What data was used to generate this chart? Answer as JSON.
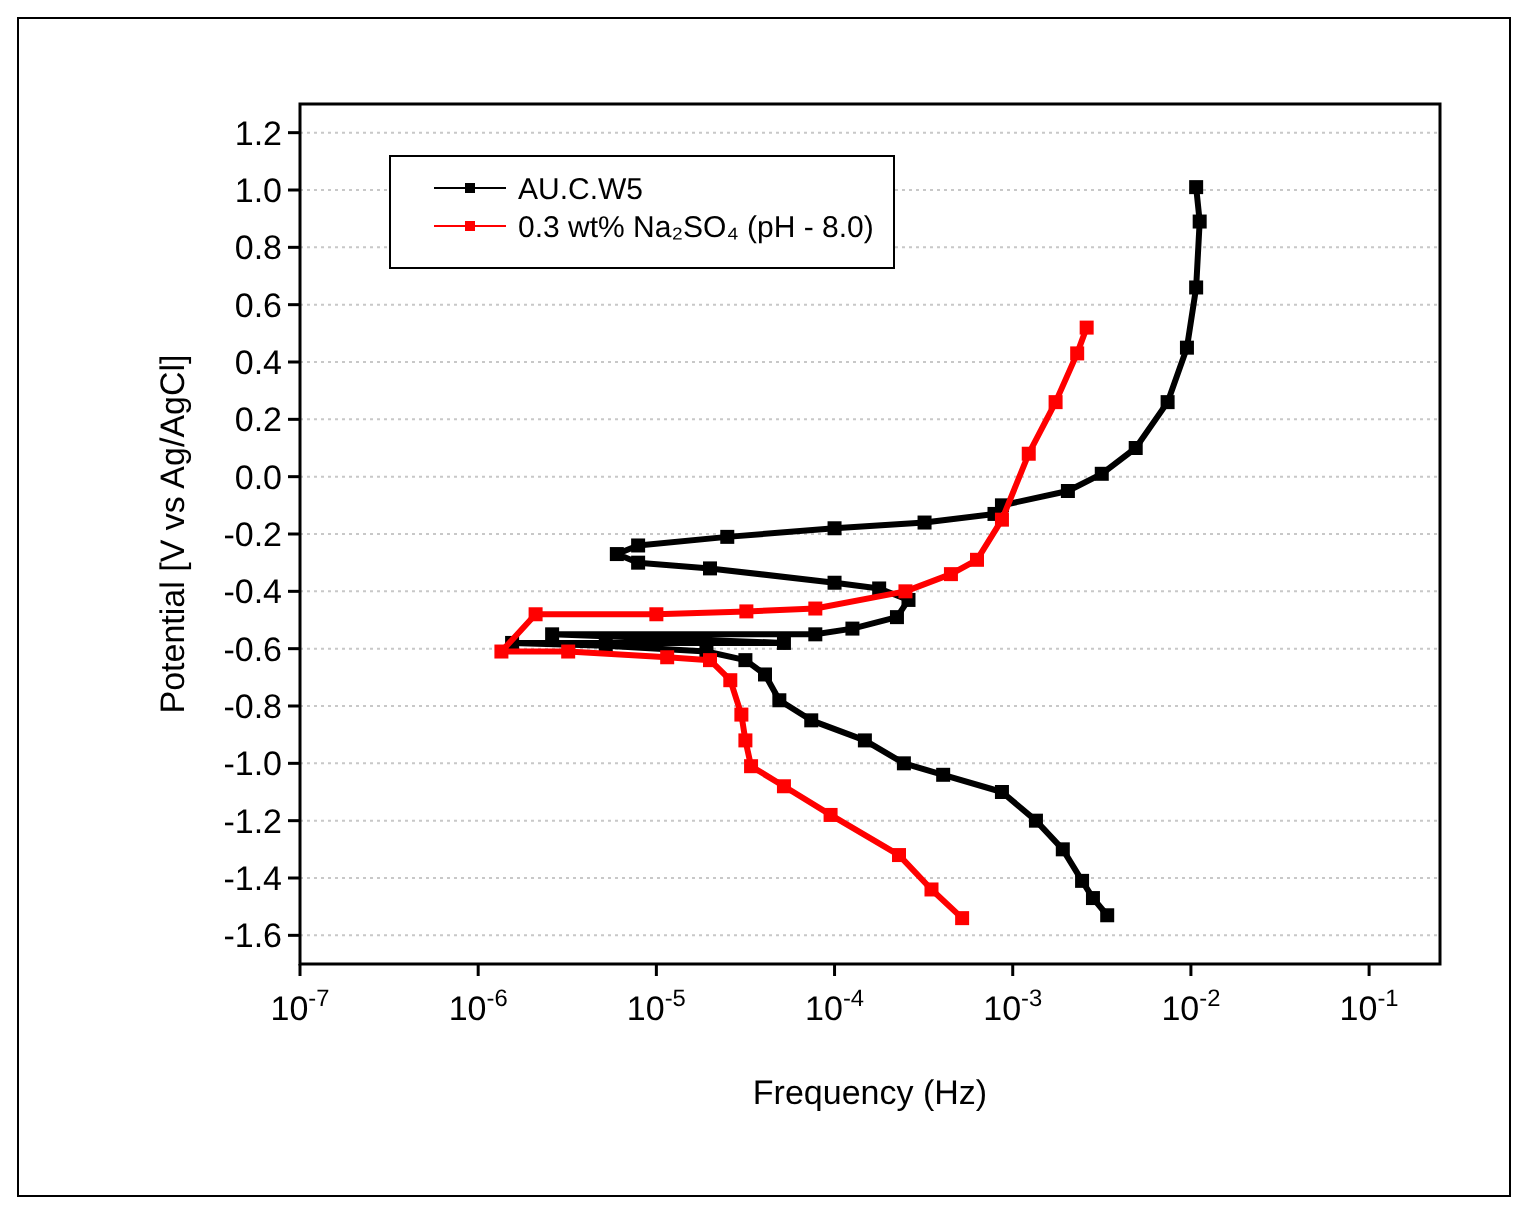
{
  "chart_data": {
    "type": "line",
    "xlabel": "Frequency (Hz)",
    "ylabel": "Potential [V vs Ag/AgCl]",
    "log": "x",
    "xlim": [
      1e-07,
      0.25
    ],
    "ylim": [
      -1.7,
      1.3
    ],
    "xticks": [
      {
        "value": 1e-07,
        "label": "10$^{-7}$"
      },
      {
        "value": 1e-06,
        "label": "10$^{-6}$"
      },
      {
        "value": 1e-05,
        "label": "10$^{-5}$"
      },
      {
        "value": 0.0001,
        "label": "10$^{-4}$"
      },
      {
        "value": 0.001,
        "label": "10$^{-3}$"
      },
      {
        "value": 0.01,
        "label": "10$^{-2}$"
      },
      {
        "value": 0.1,
        "label": "10$^{-1}$"
      }
    ],
    "yticks": [
      {
        "value": 1.2,
        "label": "1.2"
      },
      {
        "value": 1.0,
        "label": "1.0"
      },
      {
        "value": 0.8,
        "label": "0.8"
      },
      {
        "value": 0.6,
        "label": "0.6"
      },
      {
        "value": 0.4,
        "label": "0.4"
      },
      {
        "value": 0.2,
        "label": "0.2"
      },
      {
        "value": 0.0,
        "label": "0.0"
      },
      {
        "value": -0.2,
        "label": "-0.2"
      },
      {
        "value": -0.4,
        "label": "-0.4"
      },
      {
        "value": -0.6,
        "label": "-0.6"
      },
      {
        "value": -0.8,
        "label": "-0.8"
      },
      {
        "value": -1.0,
        "label": "-1.0"
      },
      {
        "value": -1.2,
        "label": "-1.2"
      },
      {
        "value": -1.4,
        "label": "-1.4"
      },
      {
        "value": -1.6,
        "label": "-1.6"
      }
    ],
    "grid": "y",
    "legend": "top left",
    "marker": "square",
    "line_style": "solid",
    "series": [
      {
        "name": "AU.C.W5",
        "color": "#000000",
        "x": [
          0.00339,
          0.00282,
          0.00245,
          0.00191,
          0.00135,
          0.00087,
          0.000407,
          0.000245,
          0.000148,
          7.4e-05,
          4.9e-05,
          4.07e-05,
          3.16e-05,
          1.91e-05,
          5.2e-06,
          1.55e-06,
          5.2e-05,
          2.6e-06,
          7.8e-05,
          0.000126,
          0.000224,
          0.00026,
          0.000178,
          0.0001,
          2e-05,
          7.9e-06,
          6e-06,
          7.9e-06,
          2.5e-05,
          0.0001,
          0.00032,
          0.00079,
          0.00087,
          0.00204,
          0.00316,
          0.0049,
          0.0074,
          0.0095,
          0.0107,
          0.0112,
          0.0107
        ],
        "values": [
          -1.53,
          -1.47,
          -1.41,
          -1.3,
          -1.2,
          -1.1,
          -1.04,
          -1.0,
          -0.92,
          -0.85,
          -0.78,
          -0.69,
          -0.64,
          -0.61,
          -0.59,
          -0.58,
          -0.58,
          -0.55,
          -0.55,
          -0.53,
          -0.49,
          -0.43,
          -0.39,
          -0.37,
          -0.32,
          -0.3,
          -0.27,
          -0.24,
          -0.21,
          -0.18,
          -0.16,
          -0.13,
          -0.1,
          -0.05,
          0.01,
          0.1,
          0.26,
          0.45,
          0.66,
          0.89,
          1.01
        ]
      },
      {
        "name": "0.3 wt% Na₂SO₄ (pH - 8.0)",
        "color": "#ff0000",
        "x": [
          0.00052,
          0.00035,
          0.00023,
          9.5e-05,
          5.2e-05,
          3.4e-05,
          3.16e-05,
          3e-05,
          2.6e-05,
          2e-05,
          1.15e-05,
          3.2e-06,
          1.35e-06,
          2.1e-06,
          1e-05,
          3.2e-05,
          7.8e-05,
          0.00025,
          0.00045,
          0.00063,
          0.00087,
          0.00123,
          0.00174,
          0.0023,
          0.0026
        ],
        "values": [
          -1.54,
          -1.44,
          -1.32,
          -1.18,
          -1.08,
          -1.01,
          -0.92,
          -0.83,
          -0.71,
          -0.64,
          -0.63,
          -0.61,
          -0.61,
          -0.48,
          -0.48,
          -0.47,
          -0.46,
          -0.4,
          -0.34,
          -0.29,
          -0.15,
          0.08,
          0.26,
          0.43,
          0.52
        ]
      }
    ]
  }
}
